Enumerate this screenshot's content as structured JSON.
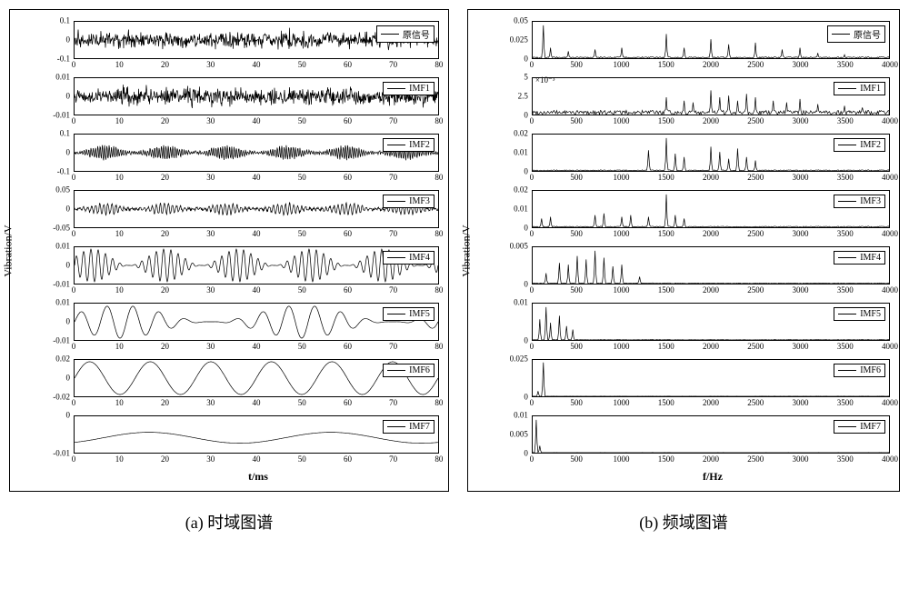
{
  "colA": {
    "ylabel": "Vibration/V",
    "xlabel": "t/ms",
    "xlim": [
      0,
      80
    ],
    "xticks": [
      0,
      10,
      20,
      30,
      40,
      50,
      60,
      70,
      80
    ],
    "caption": "(a) 时域图谱",
    "line_color": "#000000",
    "axis_color": "#000000",
    "background_color": "#ffffff",
    "tick_fontsize": 9,
    "label_fontsize": 12,
    "panels": [
      {
        "legend": "原信号",
        "yticks": [
          -0.1,
          0,
          0.1
        ],
        "kind": "noise",
        "amp": 0.85,
        "freq": 180,
        "seed": 1
      },
      {
        "legend": "IMF1",
        "yticks": [
          -0.01,
          0,
          0.01
        ],
        "kind": "noise",
        "amp": 0.9,
        "freq": 600,
        "seed": 2
      },
      {
        "legend": "IMF2",
        "yticks": [
          -0.1,
          0,
          0.1
        ],
        "kind": "burst",
        "amp": 0.75,
        "freq": 160,
        "seed": 3
      },
      {
        "legend": "IMF3",
        "yticks": [
          -0.05,
          0,
          0.05
        ],
        "kind": "burst",
        "amp": 0.6,
        "freq": 90,
        "seed": 4
      },
      {
        "legend": "IMF4",
        "yticks": [
          -0.01,
          0,
          0.01
        ],
        "kind": "modsin",
        "amp": 0.9,
        "freq": 50,
        "modfreq": 5
      },
      {
        "legend": "IMF5",
        "yticks": [
          -0.01,
          0,
          0.01
        ],
        "kind": "modsin",
        "amp": 0.9,
        "freq": 14,
        "modfreq": 2
      },
      {
        "legend": "IMF6",
        "yticks": [
          -0.02,
          0,
          0.02
        ],
        "kind": "sin",
        "amp": 0.9,
        "freq": 6
      },
      {
        "legend": "IMF7",
        "yticks": [
          -0.01,
          0
        ],
        "kind": "slowsin",
        "amp": 0.6,
        "freq": 2
      }
    ]
  },
  "colB": {
    "ylabel": "Vibration/V",
    "xlabel": "f/Hz",
    "xlim": [
      0,
      4000
    ],
    "xticks": [
      0,
      500,
      1000,
      1500,
      2000,
      2500,
      3000,
      3500,
      4000
    ],
    "caption": "(b) 频域图谱",
    "line_color": "#000000",
    "axis_color": "#000000",
    "background_color": "#ffffff",
    "tick_fontsize": 9,
    "label_fontsize": 12,
    "panels": [
      {
        "legend": "原信号",
        "yticks": [
          0,
          0.025,
          0.05
        ],
        "kind": "spikes",
        "peaks": [
          [
            120,
            0.95
          ],
          [
            200,
            0.3
          ],
          [
            400,
            0.2
          ],
          [
            700,
            0.25
          ],
          [
            1000,
            0.3
          ],
          [
            1500,
            0.7
          ],
          [
            1700,
            0.3
          ],
          [
            2000,
            0.55
          ],
          [
            2200,
            0.4
          ],
          [
            2500,
            0.45
          ],
          [
            2800,
            0.25
          ],
          [
            3000,
            0.3
          ],
          [
            3200,
            0.15
          ],
          [
            3500,
            0.1
          ]
        ],
        "noise": 0.04
      },
      {
        "legend": "IMF1",
        "yticks": [
          0,
          2.5,
          5
        ],
        "exp": "×10⁻³",
        "kind": "spikes",
        "peaks": [
          [
            1500,
            0.5
          ],
          [
            1700,
            0.4
          ],
          [
            1800,
            0.35
          ],
          [
            2000,
            0.7
          ],
          [
            2100,
            0.5
          ],
          [
            2200,
            0.55
          ],
          [
            2300,
            0.4
          ],
          [
            2400,
            0.6
          ],
          [
            2500,
            0.5
          ],
          [
            2700,
            0.4
          ],
          [
            2850,
            0.35
          ],
          [
            3000,
            0.45
          ],
          [
            3200,
            0.3
          ],
          [
            3500,
            0.25
          ],
          [
            3700,
            0.2
          ]
        ],
        "noise": 0.12
      },
      {
        "legend": "IMF2",
        "yticks": [
          0,
          0.01,
          0.02
        ],
        "kind": "spikes",
        "peaks": [
          [
            1300,
            0.6
          ],
          [
            1500,
            0.95
          ],
          [
            1600,
            0.5
          ],
          [
            1700,
            0.4
          ],
          [
            2000,
            0.7
          ],
          [
            2100,
            0.55
          ],
          [
            2200,
            0.35
          ],
          [
            2300,
            0.65
          ],
          [
            2400,
            0.4
          ],
          [
            2500,
            0.3
          ]
        ],
        "noise": 0.03
      },
      {
        "legend": "IMF3",
        "yticks": [
          0,
          0.01,
          0.02
        ],
        "kind": "spikes",
        "peaks": [
          [
            100,
            0.25
          ],
          [
            200,
            0.3
          ],
          [
            700,
            0.35
          ],
          [
            800,
            0.4
          ],
          [
            1000,
            0.3
          ],
          [
            1100,
            0.35
          ],
          [
            1300,
            0.3
          ],
          [
            1500,
            0.95
          ],
          [
            1600,
            0.35
          ],
          [
            1700,
            0.25
          ]
        ],
        "noise": 0.03
      },
      {
        "legend": "IMF4",
        "yticks": [
          0,
          0.005
        ],
        "kind": "spikes",
        "peaks": [
          [
            150,
            0.3
          ],
          [
            300,
            0.6
          ],
          [
            400,
            0.55
          ],
          [
            500,
            0.8
          ],
          [
            600,
            0.7
          ],
          [
            700,
            0.95
          ],
          [
            800,
            0.75
          ],
          [
            900,
            0.5
          ],
          [
            1000,
            0.55
          ],
          [
            1200,
            0.2
          ]
        ],
        "noise": 0.02
      },
      {
        "legend": "IMF5",
        "yticks": [
          0,
          0.01
        ],
        "kind": "spikes",
        "peaks": [
          [
            80,
            0.6
          ],
          [
            150,
            0.95
          ],
          [
            200,
            0.5
          ],
          [
            300,
            0.7
          ],
          [
            380,
            0.4
          ],
          [
            450,
            0.3
          ]
        ],
        "noise": 0.01
      },
      {
        "legend": "IMF6",
        "yticks": [
          0,
          0.025
        ],
        "kind": "spikes",
        "peaks": [
          [
            120,
            0.98
          ],
          [
            60,
            0.15
          ]
        ],
        "noise": 0.005
      },
      {
        "legend": "IMF7",
        "yticks": [
          0,
          0.005,
          0.01
        ],
        "kind": "spikes",
        "peaks": [
          [
            40,
            0.95
          ],
          [
            80,
            0.2
          ]
        ],
        "noise": 0.004
      }
    ]
  }
}
